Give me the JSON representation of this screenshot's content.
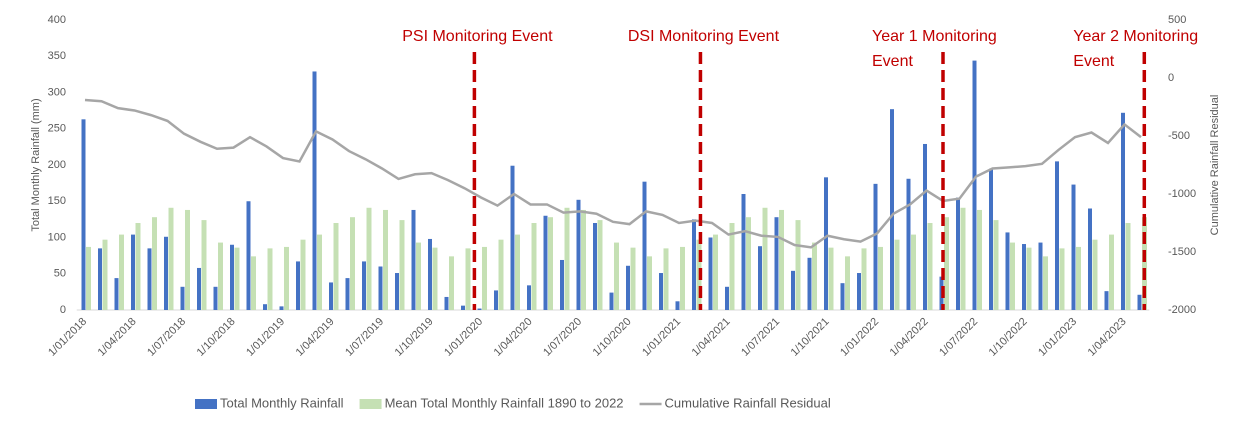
{
  "chart_data": {
    "type": "bar",
    "categories": [
      "1/01/2018",
      null,
      null,
      "1/04/2018",
      null,
      null,
      "1/07/2018",
      null,
      null,
      "1/10/2018",
      null,
      null,
      "1/01/2019",
      null,
      null,
      "1/04/2019",
      null,
      null,
      "1/07/2019",
      null,
      null,
      "1/10/2019",
      null,
      null,
      "1/01/2020",
      null,
      null,
      "1/04/2020",
      null,
      null,
      "1/07/2020",
      null,
      null,
      "1/10/2020",
      null,
      null,
      "1/01/2021",
      null,
      null,
      "1/04/2021",
      null,
      null,
      "1/07/2021",
      null,
      null,
      "1/10/2021",
      null,
      null,
      "1/01/2022",
      null,
      null,
      "1/04/2022",
      null,
      null,
      "1/07/2022",
      null,
      null,
      "1/10/2022",
      null,
      null,
      "1/01/2023",
      null,
      null,
      "1/04/2023",
      null
    ],
    "series": [
      {
        "name": "Total Monthly Rainfall",
        "color": "#4472c4",
        "type": "bar",
        "values": [
          263,
          85,
          44,
          104,
          85,
          101,
          32,
          58,
          32,
          90,
          150,
          8,
          5,
          67,
          329,
          38,
          44,
          67,
          60,
          51,
          138,
          98,
          18,
          6,
          2,
          27,
          199,
          34,
          130,
          69,
          152,
          120,
          24,
          61,
          177,
          51,
          12,
          125,
          100,
          32,
          160,
          88,
          128,
          54,
          72,
          183,
          37,
          51,
          174,
          277,
          181,
          229,
          46,
          155,
          344,
          195,
          107,
          91,
          93,
          205,
          173,
          140,
          26,
          272,
          21
        ]
      },
      {
        "name": "Mean Total Monthly Rainfall 1890 to 2022",
        "color": "#c5e0b4",
        "type": "bar",
        "values": [
          87,
          97,
          104,
          120,
          128,
          141,
          138,
          124,
          93,
          86,
          74,
          85,
          87,
          97,
          104,
          120,
          128,
          141,
          138,
          124,
          93,
          86,
          74,
          85,
          87,
          97,
          104,
          120,
          128,
          141,
          138,
          124,
          93,
          86,
          74,
          85,
          87,
          97,
          104,
          120,
          128,
          141,
          138,
          124,
          93,
          86,
          74,
          85,
          87,
          97,
          104,
          120,
          128,
          141,
          138,
          124,
          93,
          86,
          74,
          85,
          87,
          97,
          104,
          120,
          128
        ]
      },
      {
        "name": "Cumulative Rainfall Residual",
        "color": "#a6a6a6",
        "type": "line",
        "axis": "y2",
        "values": [
          -190,
          -200,
          -260,
          -280,
          -320,
          -370,
          -480,
          -550,
          -610,
          -600,
          -510,
          -590,
          -690,
          -720,
          -460,
          -530,
          -630,
          -700,
          -780,
          -870,
          -830,
          -820,
          -880,
          -950,
          -1030,
          -1100,
          -1000,
          -1090,
          -1090,
          -1160,
          -1150,
          -1170,
          -1240,
          -1260,
          -1150,
          -1180,
          -1250,
          -1230,
          -1250,
          -1350,
          -1320,
          -1360,
          -1370,
          -1440,
          -1460,
          -1360,
          -1390,
          -1410,
          -1340,
          -1170,
          -1090,
          -970,
          -1060,
          -1040,
          -850,
          -780,
          -770,
          -760,
          -740,
          -620,
          -510,
          -470,
          -560,
          -400,
          -510
        ]
      }
    ],
    "y_label": "Total Monthly Rainfall (mm)",
    "y2_label": "Cumulative Rainfall Residual",
    "ylim": [
      0,
      400
    ],
    "yticks": [
      0,
      50,
      100,
      150,
      200,
      250,
      300,
      350,
      400
    ],
    "y2lim": [
      -2000,
      500
    ],
    "y2ticks": [
      -2000,
      -1500,
      -1000,
      -500,
      0,
      500
    ],
    "grid": false,
    "legend": "bottom",
    "annotations": [
      {
        "text": "PSI Monitoring Event",
        "x": 24.1,
        "color": "#c00000"
      },
      {
        "text": "DSI Monitoring Event",
        "x": 37.8,
        "color": "#c00000"
      },
      {
        "text": "Year 1 Monitoring Event",
        "x": 52.5,
        "color": "#c00000"
      },
      {
        "text": "Year 2 Monitoring Event",
        "x": 64.7,
        "color": "#c00000"
      }
    ]
  }
}
